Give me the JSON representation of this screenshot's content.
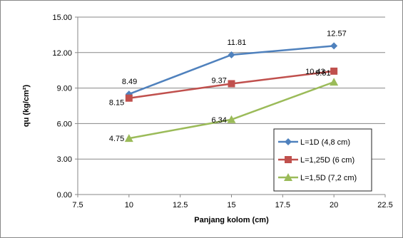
{
  "chart_data": {
    "type": "line",
    "xlabel": "Panjang kolom (cm)",
    "ylabel": "qu (kg/cm²)",
    "xlim": [
      7.5,
      22.5
    ],
    "ylim": [
      0,
      15
    ],
    "x_ticks": [
      "7.5",
      "10",
      "12.5",
      "15",
      "17.5",
      "20",
      "22.5"
    ],
    "y_ticks": [
      "0.00",
      "3.00",
      "6.00",
      "9.00",
      "12.00",
      "15.00"
    ],
    "grid": "horizontal",
    "legend_position": "bottom-right",
    "x": [
      10,
      15,
      20
    ],
    "series": [
      {
        "name": "L=1D (4,8 cm)",
        "color": "#4F81BD",
        "marker": "diamond",
        "values": [
          8.49,
          11.81,
          12.57
        ],
        "labels": [
          "8.49",
          "11.81",
          "12.57"
        ]
      },
      {
        "name": "L=1,25D (6 cm)",
        "color": "#C0504D",
        "marker": "square",
        "values": [
          8.15,
          9.37,
          10.43
        ],
        "labels": [
          "8.15",
          "9.37",
          "10.43"
        ]
      },
      {
        "name": "L=1,5D (7,2 cm)",
        "color": "#9BBB59",
        "marker": "triangle",
        "values": [
          4.75,
          6.34,
          9.51
        ],
        "labels": [
          "4.75",
          "6.34",
          "9.51"
        ]
      }
    ]
  }
}
